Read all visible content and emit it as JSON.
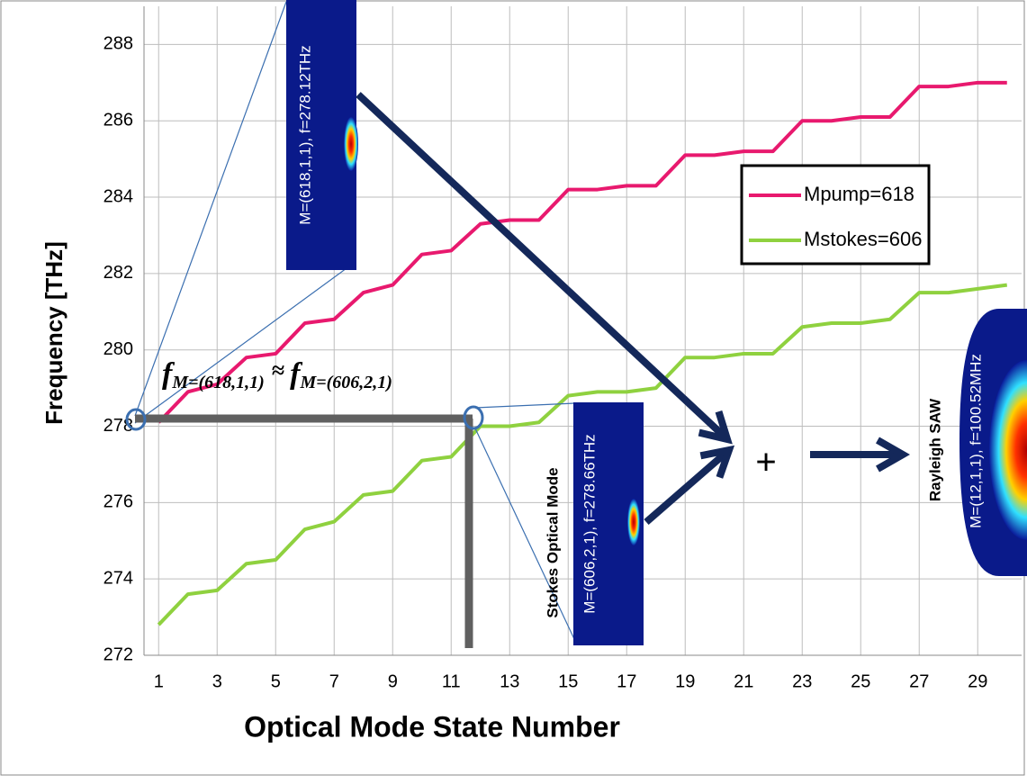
{
  "chart_data": {
    "type": "line",
    "xlabel": "Optical Mode State Number",
    "ylabel": "Frequency [THz]",
    "x": [
      1,
      2,
      3,
      4,
      5,
      6,
      7,
      8,
      9,
      10,
      11,
      12,
      13,
      14,
      15,
      16,
      17,
      18,
      19,
      20,
      21,
      22,
      23,
      24,
      25,
      26,
      27,
      28,
      29,
      30
    ],
    "xlim": [
      0.5,
      30.5
    ],
    "xticks": [
      1,
      3,
      5,
      7,
      9,
      11,
      13,
      15,
      17,
      19,
      21,
      23,
      25,
      27,
      29
    ],
    "ylim": [
      272,
      289
    ],
    "yticks": [
      272,
      274,
      276,
      278,
      280,
      282,
      284,
      286,
      288
    ],
    "grid": true,
    "series": [
      {
        "name": "Mpump=618",
        "color": "#e8196e",
        "values": [
          278.1,
          278.9,
          279.1,
          279.8,
          279.9,
          280.7,
          280.8,
          281.5,
          281.7,
          282.5,
          282.6,
          283.3,
          283.4,
          283.4,
          284.2,
          284.2,
          284.3,
          284.3,
          285.1,
          285.1,
          285.2,
          285.2,
          286.0,
          286.0,
          286.1,
          286.1,
          286.9,
          286.9,
          287.0,
          287.0
        ]
      },
      {
        "name": "Mstokes=606",
        "color": "#8fd13f",
        "values": [
          272.8,
          273.6,
          273.7,
          274.4,
          274.5,
          275.3,
          275.5,
          276.2,
          276.3,
          277.1,
          277.2,
          278.0,
          278.0,
          278.1,
          278.8,
          278.9,
          278.9,
          279.0,
          279.8,
          279.8,
          279.9,
          279.9,
          280.6,
          280.7,
          280.7,
          280.8,
          281.5,
          281.5,
          281.6,
          281.7
        ]
      }
    ],
    "annotations": {
      "formula": [
        "f",
        "M=(618,1,1)",
        "≈",
        "f",
        "M=(606,2,1)"
      ],
      "pump_mode": "M=(618,1,1), f=278.12THz",
      "stokes_title": "Stokes Optical Mode",
      "stokes_mode": "M=(606,2,1), f=278.66THz",
      "plus": "+",
      "saw_title": "Rayleigh SAW",
      "saw_mode": "M=(12,1,1), f=100.52MHz"
    }
  }
}
